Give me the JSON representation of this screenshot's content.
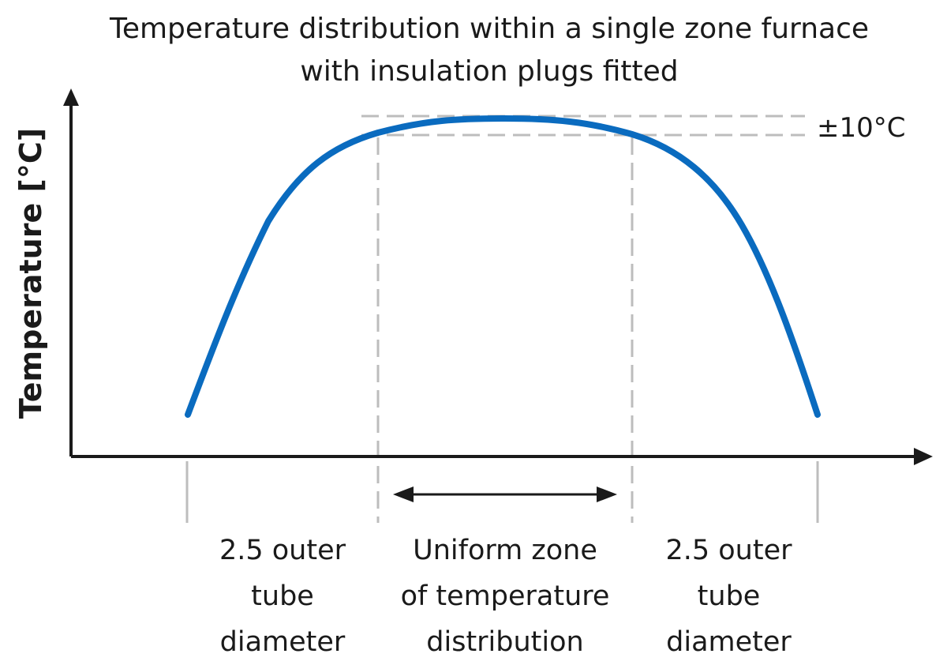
{
  "title": {
    "line1": "Temperature distribution within a single zone furnace",
    "line2": "with insulation plugs fitted"
  },
  "y_axis": {
    "label": "Temperature [°C]"
  },
  "tolerance": {
    "label": "±10°C"
  },
  "zones": {
    "left": {
      "line1": "2.5 outer",
      "line2": "tube",
      "line3": "diameter"
    },
    "middle": {
      "line1": "Uniform zone",
      "line2": "of temperature",
      "line3": "distribution"
    },
    "right": {
      "line1": "2.5 outer",
      "line2": "tube",
      "line3": "diameter"
    }
  },
  "colors": {
    "curve": "#0a6bbf",
    "axis": "#1a1a1a",
    "guide": "#bdbdbd"
  },
  "icons": {
    "y_axis_arrow": "arrow-up-icon",
    "x_axis_arrow": "arrow-right-icon",
    "uniform_zone_arrow": "double-headed-arrow-icon"
  }
}
